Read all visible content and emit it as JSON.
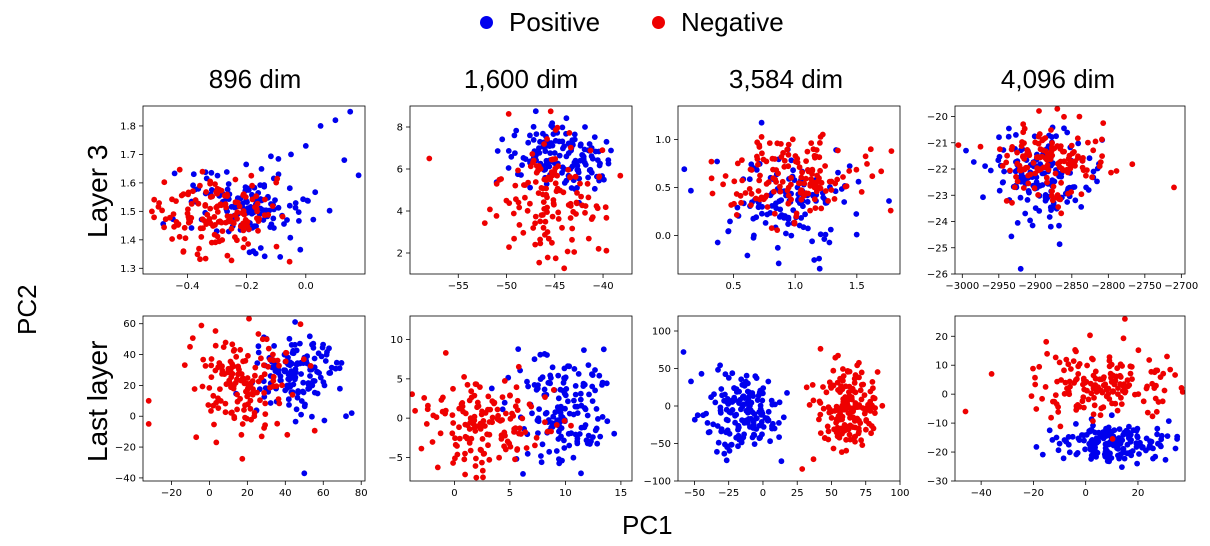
{
  "legend": {
    "positive": "Positive",
    "negative": "Negative",
    "positive_color": "#0000ee",
    "negative_color": "#ee0000"
  },
  "column_titles": [
    "896 dim",
    "1,600 dim",
    "3,584 dim",
    "4,096 dim"
  ],
  "row_labels": [
    "Layer 3",
    "Last layer"
  ],
  "xlabel": "PC1",
  "ylabel": "PC2",
  "chart_data": [
    {
      "type": "scatter",
      "title": "896 dim",
      "row": "Layer 3",
      "xlim": [
        -0.55,
        0.2
      ],
      "ylim": [
        1.28,
        1.87
      ],
      "xticks": [
        -0.4,
        -0.2,
        0.0
      ],
      "xtick_labels": [
        "−0.4",
        "−0.2",
        "0.0"
      ],
      "yticks": [
        1.3,
        1.4,
        1.5,
        1.6,
        1.7,
        1.8
      ],
      "ytick_labels": [
        "1.3",
        "1.4",
        "1.5",
        "1.6",
        "1.7",
        "1.8"
      ],
      "positive": {
        "cx": -0.22,
        "cy": 1.52,
        "sx": 0.13,
        "sy": 0.08,
        "n": 130,
        "extra": [
          [
            0.15,
            1.85
          ],
          [
            0.1,
            1.82
          ],
          [
            0.05,
            1.8
          ],
          [
            0.13,
            1.68
          ],
          [
            0.0,
            1.73
          ],
          [
            -0.05,
            1.7
          ]
        ]
      },
      "negative": {
        "cx": -0.3,
        "cy": 1.49,
        "sx": 0.1,
        "sy": 0.07,
        "n": 150,
        "extra": [
          [
            -0.52,
            1.5
          ]
        ]
      }
    },
    {
      "type": "scatter",
      "title": "1,600 dim",
      "row": "Layer 3",
      "xlim": [
        -60,
        -37
      ],
      "ylim": [
        1.0,
        9.0
      ],
      "xticks": [
        -55,
        -50,
        -45,
        -40
      ],
      "xtick_labels": [
        "−55",
        "−50",
        "−45",
        "−40"
      ],
      "yticks": [
        2,
        4,
        6,
        8
      ],
      "ytick_labels": [
        "2",
        "4",
        "6",
        "8"
      ],
      "positive": {
        "cx": -44.5,
        "cy": 6.6,
        "sx": 2.8,
        "sy": 0.8,
        "n": 150,
        "extra": []
      },
      "negative": {
        "cx": -45.5,
        "cy": 4.5,
        "sx": 3.0,
        "sy": 1.6,
        "n": 140,
        "extra": [
          [
            -58,
            6.5
          ]
        ]
      }
    },
    {
      "type": "scatter",
      "title": "3,584 dim",
      "row": "Layer 3",
      "xlim": [
        0.05,
        1.85
      ],
      "ylim": [
        -0.4,
        1.35
      ],
      "xticks": [
        0.5,
        1.0,
        1.5
      ],
      "xtick_labels": [
        "0.5",
        "1.0",
        "1.5"
      ],
      "yticks": [
        0.0,
        0.5,
        1.0
      ],
      "ytick_labels": [
        "0.0",
        "0.5",
        "1.0"
      ],
      "positive": {
        "cx": 0.95,
        "cy": 0.3,
        "sx": 0.28,
        "sy": 0.3,
        "n": 130,
        "extra": []
      },
      "negative": {
        "cx": 0.95,
        "cy": 0.6,
        "sx": 0.3,
        "sy": 0.22,
        "n": 160,
        "extra": [
          [
            1.78,
            0.88
          ]
        ]
      }
    },
    {
      "type": "scatter",
      "title": "4,096 dim",
      "row": "Layer 3",
      "xlim": [
        -3010,
        -2695
      ],
      "ylim": [
        -26,
        -19.6
      ],
      "xticks": [
        -3000,
        -2950,
        -2900,
        -2850,
        -2800,
        -2750,
        -2700
      ],
      "xtick_labels": [
        "−3000",
        "−2950",
        "−2900",
        "−2850",
        "−2800",
        "−2750",
        "−2700"
      ],
      "yticks": [
        -26,
        -25,
        -24,
        -23,
        -22,
        -21,
        -20
      ],
      "ytick_labels": [
        "−26",
        "−25",
        "−24",
        "−23",
        "−22",
        "−21",
        "−20"
      ],
      "positive": {
        "cx": -2895,
        "cy": -22.2,
        "sx": 35,
        "sy": 0.9,
        "n": 150,
        "extra": [
          [
            -2920,
            -25.8
          ],
          [
            -2995,
            -21.3
          ]
        ]
      },
      "negative": {
        "cx": -2880,
        "cy": -21.7,
        "sx": 35,
        "sy": 0.8,
        "n": 150,
        "extra": [
          [
            -2710,
            -22.7
          ]
        ]
      }
    },
    {
      "type": "scatter",
      "title": "896 dim",
      "row": "Last layer",
      "xlim": [
        -35,
        82
      ],
      "ylim": [
        -42,
        65
      ],
      "xticks": [
        -20,
        0,
        20,
        40,
        60,
        80
      ],
      "xtick_labels": [
        "−20",
        "0",
        "20",
        "40",
        "60",
        "80"
      ],
      "yticks": [
        -40,
        -20,
        0,
        20,
        40,
        60
      ],
      "ytick_labels": [
        "−40",
        "−20",
        "0",
        "20",
        "40",
        "60"
      ],
      "positive": {
        "cx": 45,
        "cy": 28,
        "sx": 10,
        "sy": 12,
        "n": 150,
        "extra": [
          [
            50,
            -37
          ],
          [
            72,
            0
          ],
          [
            75,
            2
          ]
        ]
      },
      "negative": {
        "cx": 15,
        "cy": 22,
        "sx": 13,
        "sy": 17,
        "n": 150,
        "extra": [
          [
            -32,
            -5
          ],
          [
            -32,
            10
          ]
        ]
      }
    },
    {
      "type": "scatter",
      "title": "1,600 dim",
      "row": "Last layer",
      "xlim": [
        -4,
        16
      ],
      "ylim": [
        -8,
        13
      ],
      "xticks": [
        0,
        5,
        10,
        15
      ],
      "xtick_labels": [
        "0",
        "5",
        "10",
        "15"
      ],
      "yticks": [
        -5,
        0,
        5,
        10
      ],
      "ytick_labels": [
        "−5",
        "0",
        "5",
        "10"
      ],
      "positive": {
        "cx": 10,
        "cy": 1.5,
        "sx": 2.2,
        "sy": 4.2,
        "n": 160,
        "extra": []
      },
      "negative": {
        "cx": 2.5,
        "cy": -1,
        "sx": 3.0,
        "sy": 3.0,
        "n": 160,
        "extra": []
      }
    },
    {
      "type": "scatter",
      "title": "3,584 dim",
      "row": "Last layer",
      "xlim": [
        -62,
        100
      ],
      "ylim": [
        -100,
        120
      ],
      "xticks": [
        -50,
        -25,
        0,
        25,
        50,
        75,
        100
      ],
      "xtick_labels": [
        "−50",
        "−25",
        "0",
        "25",
        "50",
        "75",
        "100"
      ],
      "yticks": [
        -100,
        -50,
        0,
        50,
        100
      ],
      "ytick_labels": [
        "−100",
        "−50",
        "0",
        "50",
        "100"
      ],
      "positive": {
        "cx": -15,
        "cy": -10,
        "sx": 15,
        "sy": 28,
        "n": 170,
        "extra": [
          [
            -58,
            72
          ]
        ]
      },
      "negative": {
        "cx": 62,
        "cy": -5,
        "sx": 13,
        "sy": 30,
        "n": 170,
        "extra": [
          [
            57,
            120
          ]
        ]
      }
    },
    {
      "type": "scatter",
      "title": "4,096 dim",
      "row": "Last layer",
      "xlim": [
        -50,
        38
      ],
      "ylim": [
        -30,
        27
      ],
      "xticks": [
        -40,
        -20,
        0,
        20
      ],
      "xtick_labels": [
        "−40",
        "−20",
        "0",
        "20"
      ],
      "yticks": [
        -30,
        -20,
        -10,
        0,
        10,
        20
      ],
      "ytick_labels": [
        "−30",
        "−20",
        "−10",
        "0",
        "10",
        "20"
      ],
      "positive": {
        "cx": 10,
        "cy": -17,
        "sx": 10,
        "sy": 3.5,
        "n": 170,
        "extra": []
      },
      "negative": {
        "cx": 9,
        "cy": 3,
        "sx": 13,
        "sy": 6,
        "n": 170,
        "extra": [
          [
            -46,
            -6
          ],
          [
            -36,
            7
          ],
          [
            15,
            26
          ]
        ]
      }
    }
  ]
}
